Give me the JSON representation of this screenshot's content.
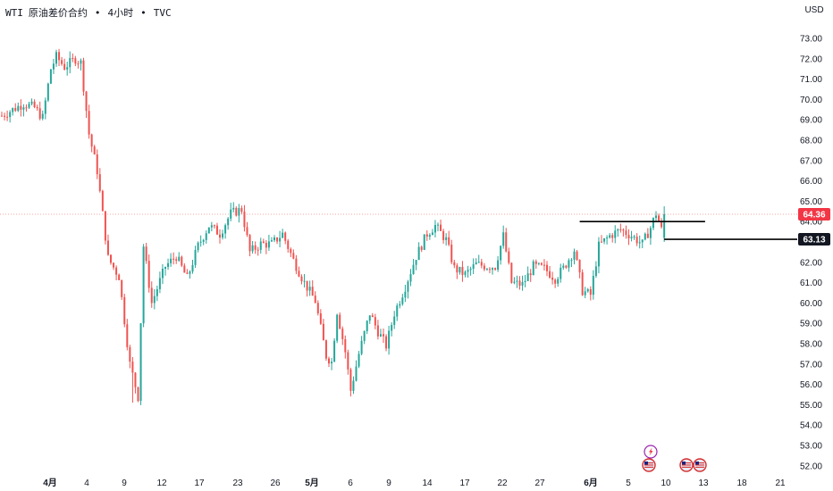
{
  "header": {
    "symbol": "WTI",
    "name": "原油差价合约",
    "interval": "4小时",
    "source": "TVC",
    "separator": "•",
    "currency": "USD"
  },
  "colors": {
    "up": "#26a69a",
    "down": "#ef5350",
    "last_price_badge": "#f23645",
    "horizontal_line_badge": "#131722",
    "price_line": "#f7a6a6",
    "event_flag_bg": "#e8eaf6",
    "lightning_icon": "#9c27b0"
  },
  "price_axis": {
    "min": 51.5,
    "max": 73.5,
    "labels": [
      "73.00",
      "72.00",
      "71.00",
      "70.00",
      "69.00",
      "68.00",
      "67.00",
      "66.00",
      "65.00",
      "64.00",
      "63.00",
      "62.00",
      "61.00",
      "60.00",
      "59.00",
      "58.00",
      "57.00",
      "56.00",
      "55.00",
      "54.00",
      "53.00",
      "52.00"
    ]
  },
  "time_axis": {
    "labels": [
      "4月",
      "4",
      "9",
      "12",
      "17",
      "23",
      "26",
      "5月",
      "6",
      "9",
      "14",
      "17",
      "22",
      "27",
      "6月",
      "5",
      "10",
      "13",
      "18",
      "21"
    ],
    "bold": [
      "4月",
      "5月",
      "6月"
    ]
  },
  "last_price": {
    "value": 64.36,
    "label": "64.36"
  },
  "horizontal_line": {
    "value": 63.13,
    "label": "63.13"
  },
  "drawings": [
    {
      "type": "trend_line",
      "from_index": 212,
      "to_index": 258,
      "price": 64.0
    },
    {
      "type": "horizontal_ray",
      "from_index": 243,
      "price": 63.13
    }
  ],
  "event_icons": [
    {
      "name": "lightning-icon",
      "type": "lightning"
    },
    {
      "name": "us-flag-icon",
      "type": "flag"
    },
    {
      "name": "us-flag-icon",
      "type": "flag"
    },
    {
      "name": "us-flag-icon",
      "type": "flag"
    }
  ],
  "chart_data": {
    "type": "candlestick",
    "series": [
      {
        "name": "WTI",
        "anchors": [
          [
            0,
            69.2
          ],
          [
            4,
            69.5
          ],
          [
            8,
            69.8
          ],
          [
            12,
            69.6
          ],
          [
            15,
            69.1
          ],
          [
            18,
            71.5
          ],
          [
            20,
            72.1
          ],
          [
            23,
            71.6
          ],
          [
            27,
            72.0
          ],
          [
            29,
            71.8
          ],
          [
            32,
            68.3
          ],
          [
            35,
            66.5
          ],
          [
            39,
            62.2
          ],
          [
            43,
            61.3
          ],
          [
            47,
            57.0
          ],
          [
            50,
            55.4
          ],
          [
            52,
            62.8
          ],
          [
            55,
            60.0
          ],
          [
            60,
            61.8
          ],
          [
            64,
            62.3
          ],
          [
            68,
            61.2
          ],
          [
            72,
            62.8
          ],
          [
            76,
            63.8
          ],
          [
            80,
            63.4
          ],
          [
            84,
            64.4
          ],
          [
            88,
            64.6
          ],
          [
            91,
            62.5
          ],
          [
            95,
            62.9
          ],
          [
            99,
            62.9
          ],
          [
            103,
            63.4
          ],
          [
            107,
            62.1
          ],
          [
            111,
            61.0
          ],
          [
            115,
            60.1
          ],
          [
            119,
            57.4
          ],
          [
            121,
            57.1
          ],
          [
            123,
            59.6
          ],
          [
            126,
            57.6
          ],
          [
            128,
            55.7
          ],
          [
            131,
            57.5
          ],
          [
            135,
            59.5
          ],
          [
            138,
            58.6
          ],
          [
            141,
            57.9
          ],
          [
            144,
            59.5
          ],
          [
            148,
            60.8
          ],
          [
            152,
            62.3
          ],
          [
            156,
            63.4
          ],
          [
            159,
            63.8
          ],
          [
            163,
            63.1
          ],
          [
            166,
            61.7
          ],
          [
            170,
            61.4
          ],
          [
            174,
            61.9
          ],
          [
            178,
            61.8
          ],
          [
            181,
            61.8
          ],
          [
            184,
            63.3
          ],
          [
            187,
            61.0
          ],
          [
            191,
            60.9
          ],
          [
            195,
            61.8
          ],
          [
            199,
            61.7
          ],
          [
            203,
            61.2
          ],
          [
            206,
            61.7
          ],
          [
            210,
            62.6
          ],
          [
            213,
            60.6
          ],
          [
            216,
            60.4
          ],
          [
            219,
            62.8
          ],
          [
            223,
            63.3
          ],
          [
            227,
            63.6
          ],
          [
            231,
            63.3
          ],
          [
            235,
            62.9
          ],
          [
            238,
            63.7
          ],
          [
            240,
            64.4
          ],
          [
            243,
            63.2
          ]
        ]
      }
    ],
    "xlabel": "",
    "ylabel": ""
  }
}
